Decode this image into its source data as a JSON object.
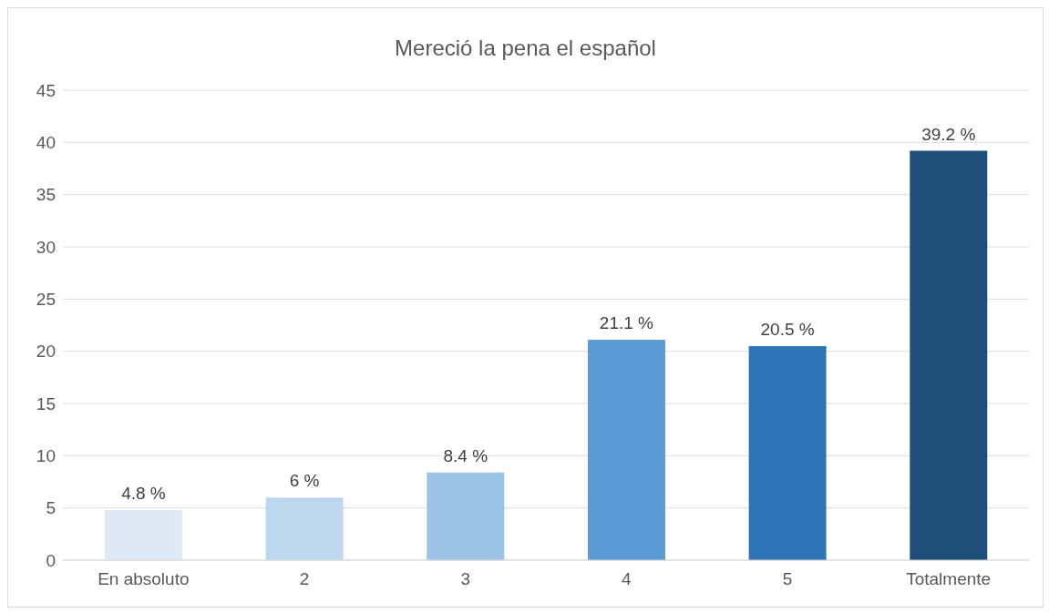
{
  "chart_data": {
    "type": "bar",
    "title": "Mereció la pena el español",
    "categories": [
      "En absoluto",
      "2",
      "3",
      "4",
      "5",
      "Totalmente"
    ],
    "values": [
      4.8,
      6,
      8.4,
      21.1,
      20.5,
      39.2
    ],
    "colors": [
      "#dde9f5",
      "#bdd7ee",
      "#9dc3e6",
      "#5b9bd5",
      "#2e75b6",
      "#1f4e79"
    ],
    "value_labels": [
      "4.8 %",
      "6 %",
      "8.4 %",
      "21.1 %",
      "20.5 %",
      "39.2 %"
    ],
    "ylim": [
      0,
      45
    ],
    "yticks": [
      0,
      5,
      10,
      15,
      20,
      25,
      30,
      35,
      40,
      45
    ],
    "grid": "y"
  }
}
